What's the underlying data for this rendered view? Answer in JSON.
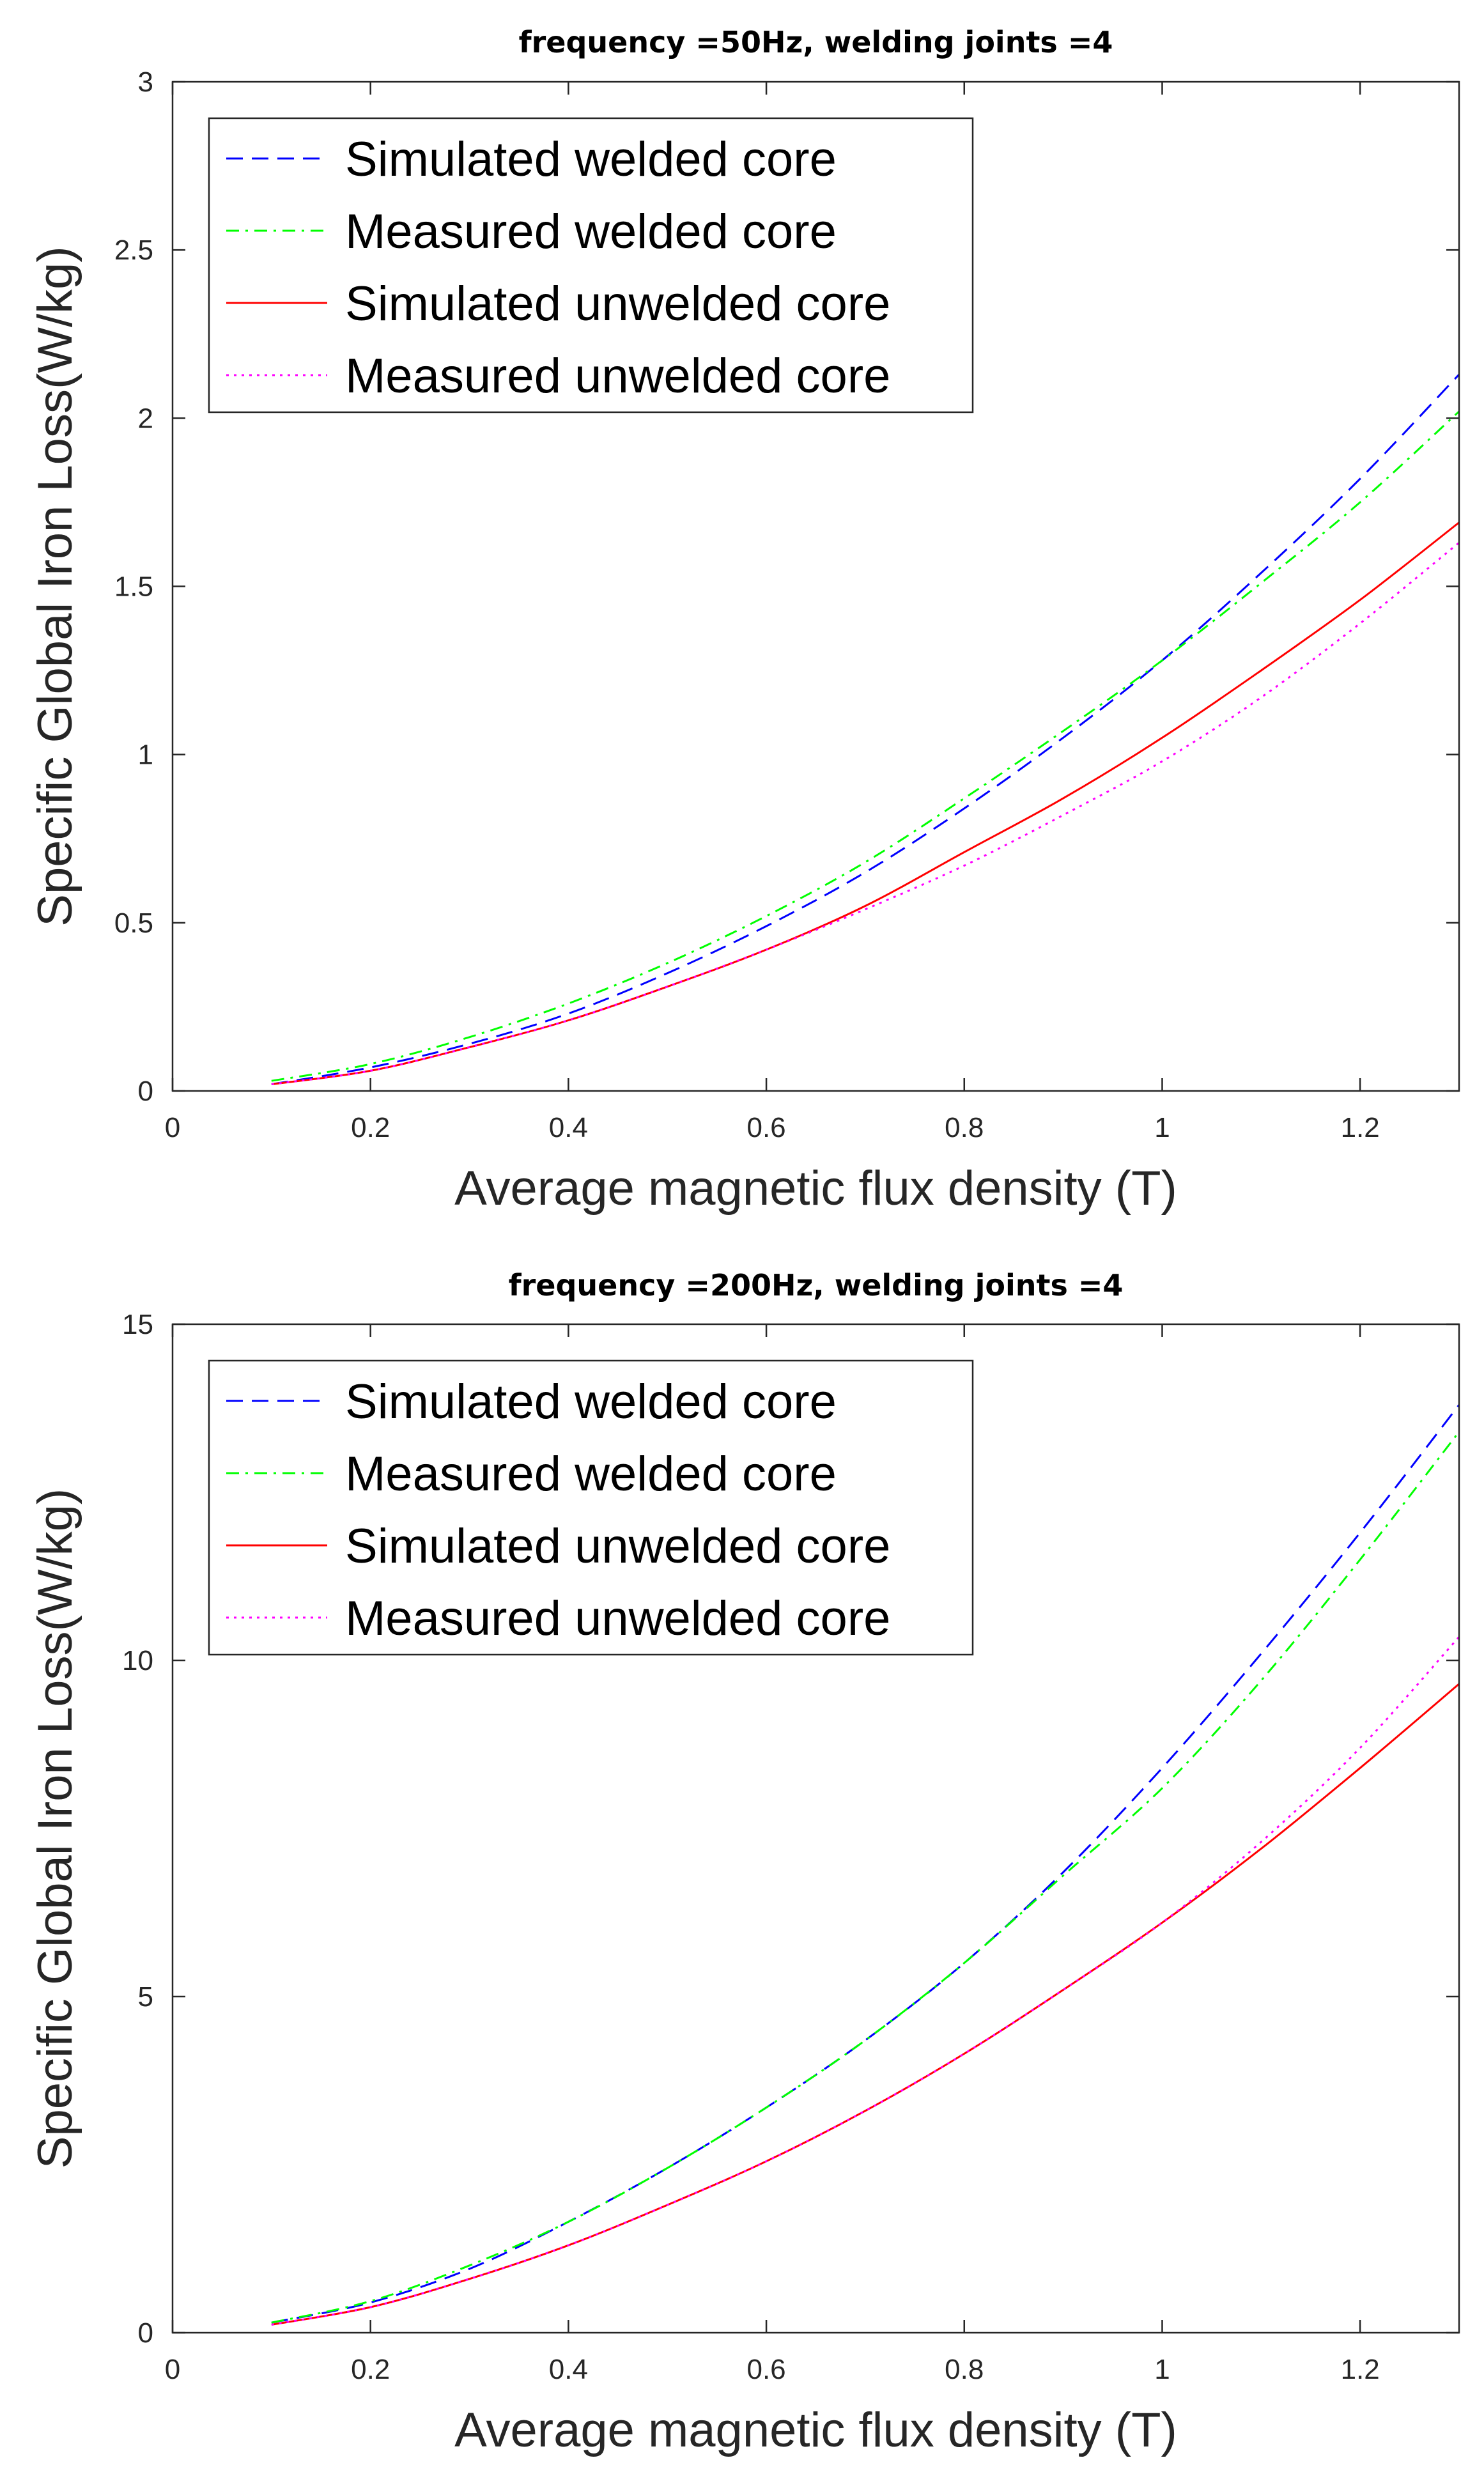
{
  "chart_data": [
    {
      "type": "line",
      "title": "frequency =50Hz, welding joints =4",
      "xlabel": "Average magnetic flux density (T)",
      "ylabel": "Specific Global Iron Loss(W/kg)",
      "xlim": [
        0,
        1.3
      ],
      "ylim": [
        0,
        3
      ],
      "xticks": [
        0,
        0.2,
        0.4,
        0.6,
        0.8,
        1,
        1.2
      ],
      "xtick_labels": [
        "0",
        "0.2",
        "0.4",
        "0.6",
        "0.8",
        "1",
        "1.2"
      ],
      "yticks": [
        0,
        0.5,
        1,
        1.5,
        2,
        2.5,
        3
      ],
      "ytick_labels": [
        "0",
        "0.5",
        "1",
        "1.5",
        "2",
        "2.5",
        "3"
      ],
      "legend_position": "top-left",
      "x": [
        0.1,
        0.2,
        0.3,
        0.4,
        0.5,
        0.6,
        0.7,
        0.8,
        0.9,
        1.0,
        1.1,
        1.2,
        1.3
      ],
      "series": [
        {
          "name": "Simulated welded core",
          "color": "#0000ff",
          "style": "dashed",
          "values": [
            0.02,
            0.07,
            0.14,
            0.23,
            0.35,
            0.49,
            0.65,
            0.84,
            1.05,
            1.28,
            1.54,
            1.82,
            2.13
          ]
        },
        {
          "name": "Measured welded core",
          "color": "#00ff00",
          "style": "dashdot",
          "values": [
            0.03,
            0.08,
            0.16,
            0.26,
            0.38,
            0.52,
            0.68,
            0.87,
            1.07,
            1.28,
            1.51,
            1.75,
            2.02
          ]
        },
        {
          "name": "Simulated unwelded core",
          "color": "#ff0000",
          "style": "solid",
          "values": [
            0.02,
            0.06,
            0.13,
            0.21,
            0.31,
            0.42,
            0.55,
            0.71,
            0.87,
            1.05,
            1.25,
            1.46,
            1.69
          ]
        },
        {
          "name": "Measured unwelded core",
          "color": "#ff00ff",
          "style": "dotted",
          "values": [
            0.02,
            0.06,
            0.13,
            0.21,
            0.31,
            0.42,
            0.54,
            0.67,
            0.82,
            0.98,
            1.17,
            1.39,
            1.63
          ]
        }
      ]
    },
    {
      "type": "line",
      "title": "frequency =200Hz, welding joints =4",
      "xlabel": "Average magnetic flux density (T)",
      "ylabel": "Specific Global Iron Loss(W/kg)",
      "xlim": [
        0,
        1.3
      ],
      "ylim": [
        0,
        15
      ],
      "xticks": [
        0,
        0.2,
        0.4,
        0.6,
        0.8,
        1,
        1.2
      ],
      "xtick_labels": [
        "0",
        "0.2",
        "0.4",
        "0.6",
        "0.8",
        "1",
        "1.2"
      ],
      "yticks": [
        0,
        5,
        10,
        15
      ],
      "ytick_labels": [
        "0",
        "5",
        "10",
        "15"
      ],
      "legend_position": "top-left",
      "x": [
        0.1,
        0.2,
        0.3,
        0.4,
        0.5,
        0.6,
        0.7,
        0.8,
        0.9,
        1.0,
        1.1,
        1.2,
        1.3
      ],
      "series": [
        {
          "name": "Simulated welded core",
          "color": "#0000ff",
          "style": "dashed",
          "values": [
            0.15,
            0.45,
            0.95,
            1.65,
            2.45,
            3.35,
            4.35,
            5.5,
            6.85,
            8.4,
            10.1,
            11.9,
            13.8
          ]
        },
        {
          "name": "Measured welded core",
          "color": "#00ff00",
          "style": "dashdot",
          "values": [
            0.15,
            0.47,
            1.0,
            1.65,
            2.45,
            3.35,
            4.35,
            5.5,
            6.8,
            8.1,
            9.7,
            11.5,
            13.4
          ]
        },
        {
          "name": "Simulated unwelded core",
          "color": "#ff0000",
          "style": "solid",
          "values": [
            0.12,
            0.38,
            0.8,
            1.3,
            1.9,
            2.55,
            3.3,
            4.15,
            5.1,
            6.1,
            7.2,
            8.4,
            9.65
          ]
        },
        {
          "name": "Measured unwelded core",
          "color": "#ff00ff",
          "style": "dotted",
          "values": [
            0.12,
            0.38,
            0.8,
            1.3,
            1.9,
            2.55,
            3.3,
            4.15,
            5.1,
            6.1,
            7.3,
            8.7,
            10.35
          ]
        }
      ]
    }
  ]
}
